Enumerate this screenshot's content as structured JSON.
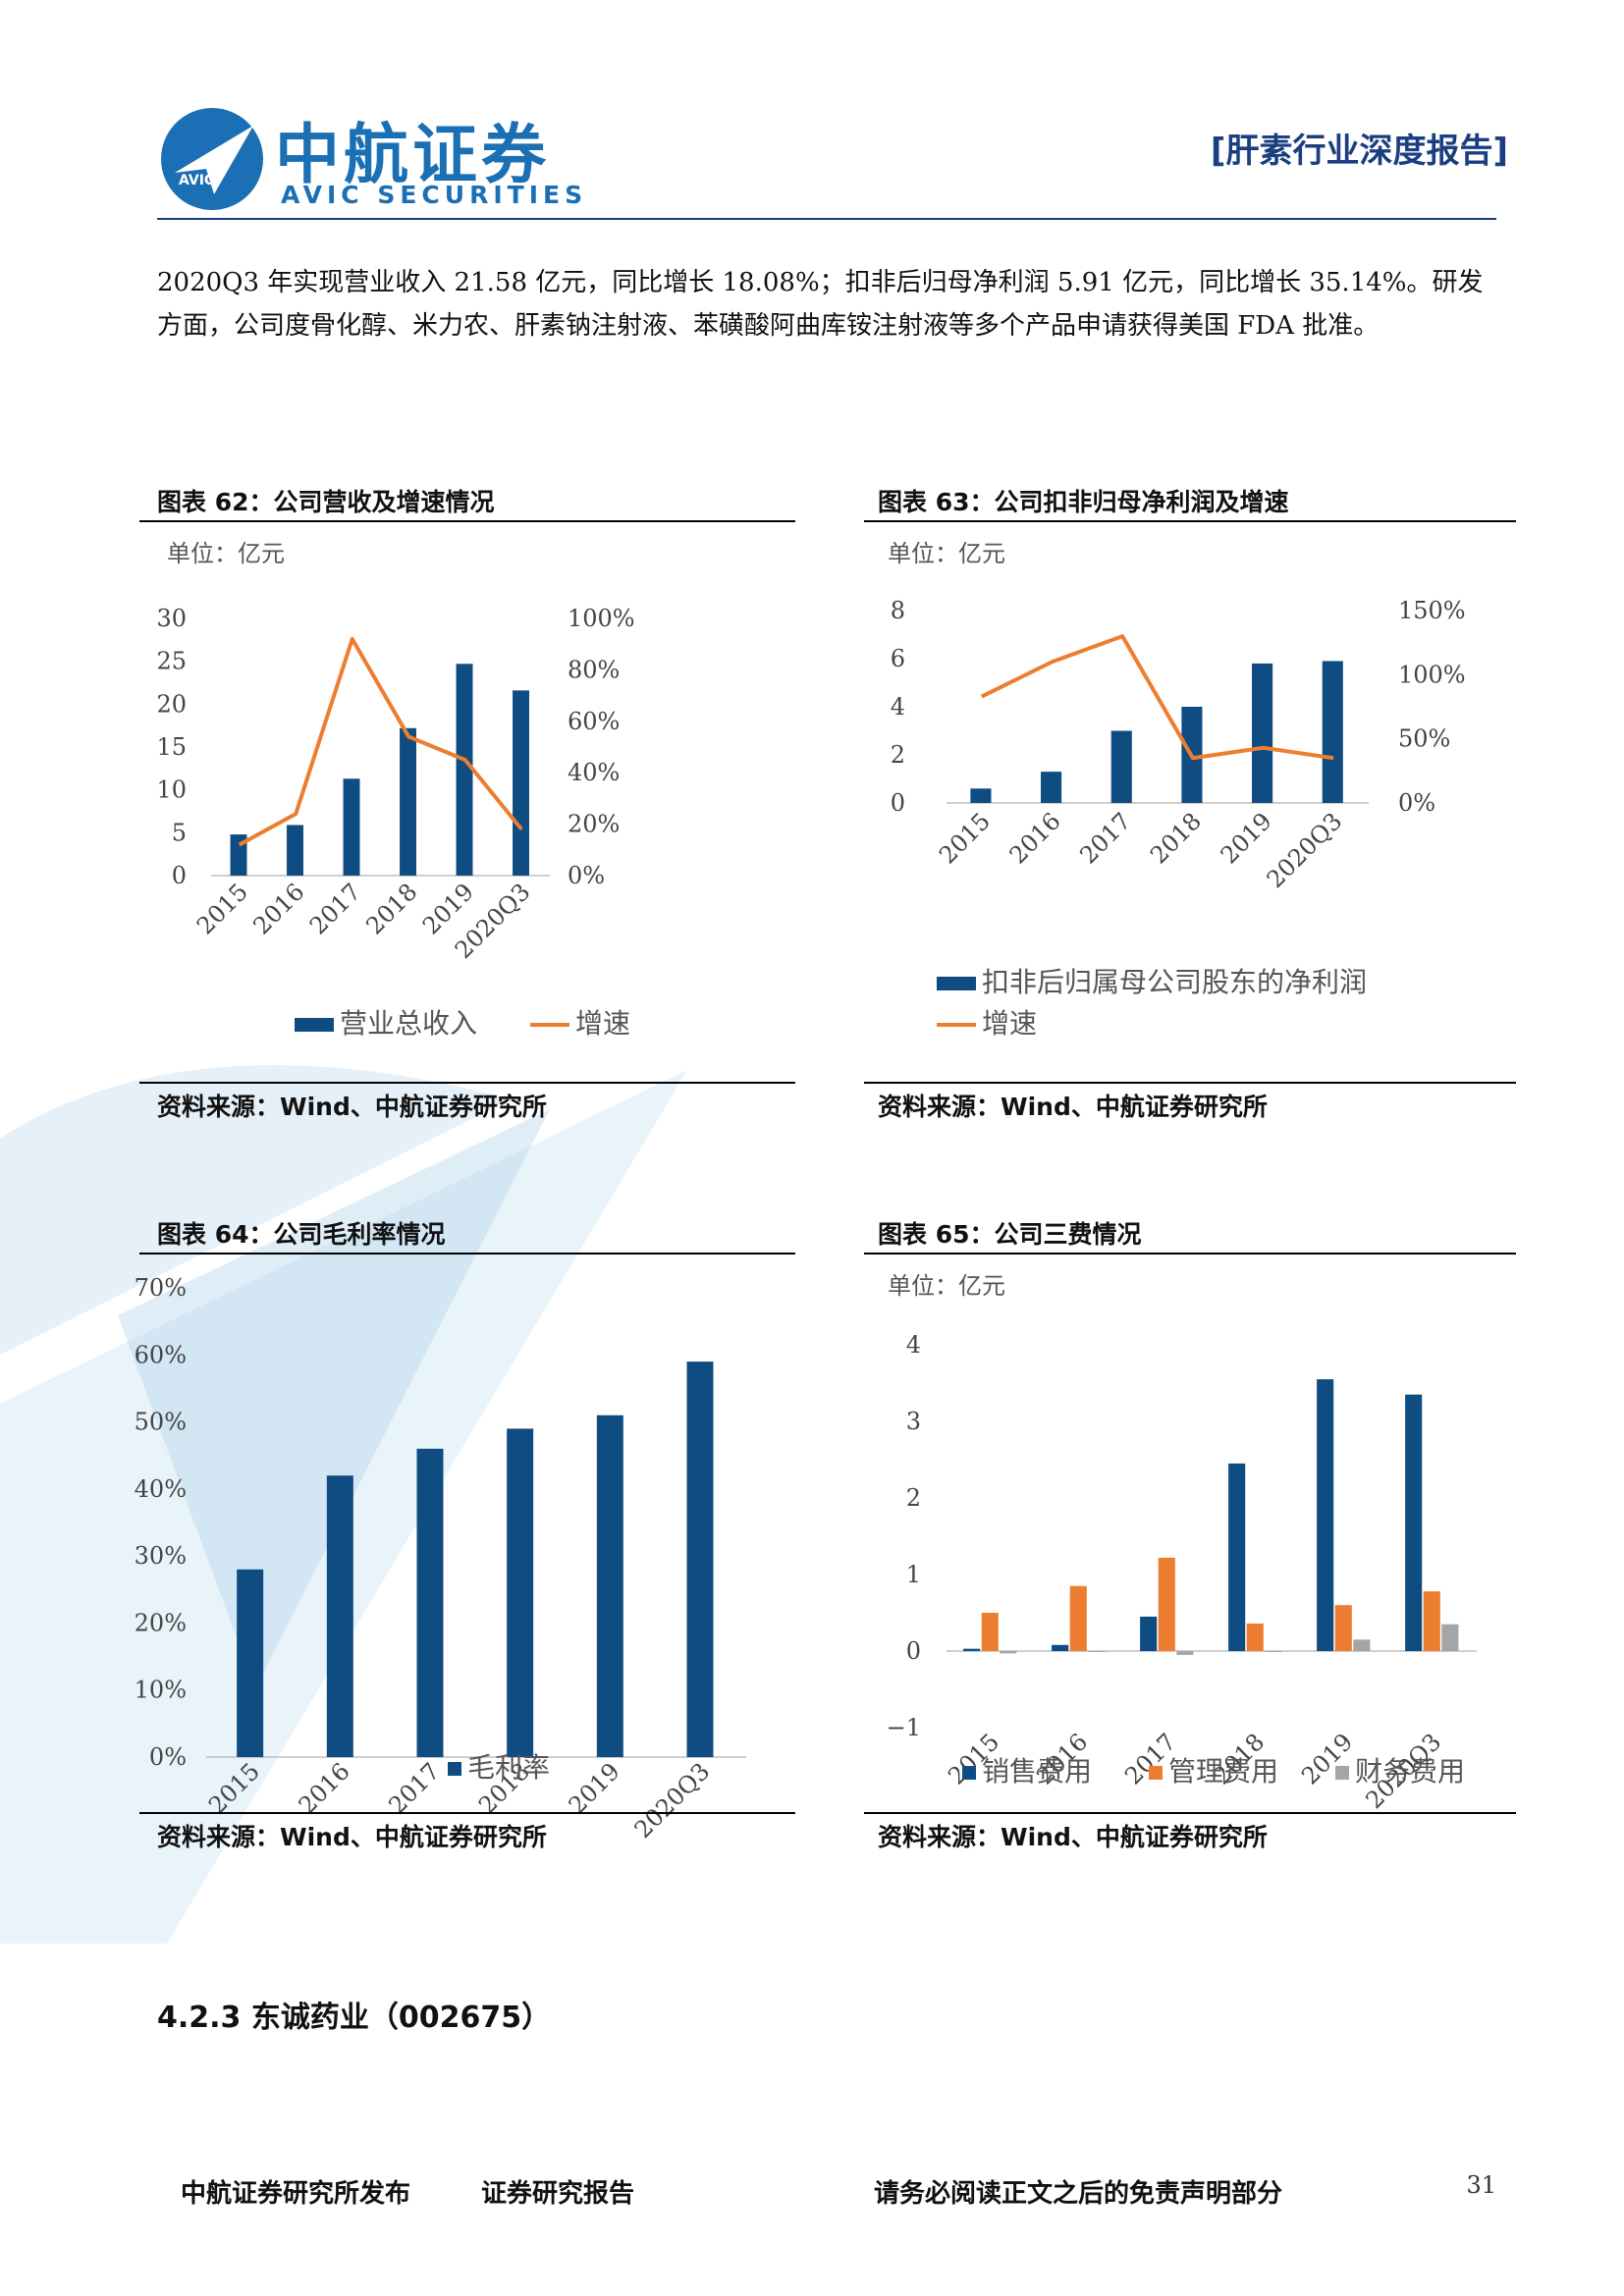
{
  "header": {
    "logo_cn": "中航证券",
    "logo_en": "AVIC SECURITIES",
    "logo_badge": "AVIC",
    "report_type": "[肝素行业深度报告]"
  },
  "body": {
    "paragraph": "2020Q3 年实现营业收入 21.58 亿元，同比增长 18.08%；扣非后归母净利润 5.91 亿元，同比增长 35.14%。研发方面，公司度骨化醇、米力农、肝素钠注射液、苯磺酸阿曲库铵注射液等多个产品申请获得美国 FDA 批准。"
  },
  "figures": {
    "fig62": {
      "title": "图表 62：公司营收及增速情况",
      "unit": "单位：亿元",
      "source": "资料来源：Wind、中航证券研究所"
    },
    "fig63": {
      "title": "图表 63：公司扣非归母净利润及增速",
      "unit": "单位：亿元",
      "source": "资料来源：Wind、中航证券研究所"
    },
    "fig64": {
      "title": "图表 64：公司毛利率情况",
      "source": "资料来源：Wind、中航证券研究所"
    },
    "fig65": {
      "title": "图表 65：公司三费情况",
      "unit": "单位：亿元",
      "source": "资料来源：Wind、中航证券研究所"
    }
  },
  "chart_data": [
    {
      "id": "fig62",
      "type": "bar",
      "categories": [
        "2015",
        "2016",
        "2017",
        "2018",
        "2019",
        "2020Q3"
      ],
      "series": [
        {
          "name": "营业总收入",
          "values": [
            4.8,
            5.9,
            11.3,
            17.2,
            24.7,
            21.6
          ],
          "axis": "left",
          "color": "#0f4c81"
        },
        {
          "name": "增速",
          "type": "line",
          "values": [
            0.12,
            0.24,
            0.92,
            0.54,
            0.45,
            0.18
          ],
          "axis": "right",
          "color": "#ed7d31"
        }
      ],
      "y_left": {
        "min": 0,
        "max": 30,
        "ticks": [
          "0",
          "5",
          "10",
          "15",
          "20",
          "25",
          "30"
        ]
      },
      "y_right": {
        "min": 0,
        "max": 1,
        "ticks": [
          "0%",
          "20%",
          "40%",
          "60%",
          "80%",
          "100%"
        ]
      },
      "legend": "bottom"
    },
    {
      "id": "fig63",
      "type": "bar",
      "categories": [
        "2015",
        "2016",
        "2017",
        "2018",
        "2019",
        "2020Q3"
      ],
      "series": [
        {
          "name": "扣非后归属母公司股东的净利润",
          "values": [
            0.6,
            1.3,
            3.0,
            4.0,
            5.8,
            5.9
          ],
          "axis": "left",
          "color": "#0f4c81"
        },
        {
          "name": "增速",
          "type": "line",
          "values": [
            0.83,
            1.1,
            1.3,
            0.35,
            0.43,
            0.35
          ],
          "axis": "right",
          "color": "#ed7d31"
        }
      ],
      "y_left": {
        "min": 0,
        "max": 8,
        "ticks": [
          "0",
          "2",
          "4",
          "6",
          "8"
        ]
      },
      "y_right": {
        "min": 0,
        "max": 1.5,
        "ticks": [
          "0%",
          "50%",
          "100%",
          "150%"
        ]
      },
      "legend": "bottom"
    },
    {
      "id": "fig64",
      "type": "bar",
      "categories": [
        "2015",
        "2016",
        "2017",
        "2018",
        "2019",
        "2020Q3"
      ],
      "series": [
        {
          "name": "毛利率",
          "values": [
            0.28,
            0.42,
            0.46,
            0.49,
            0.51,
            0.59
          ],
          "color": "#0f4c81"
        }
      ],
      "y_left": {
        "min": 0,
        "max": 0.7,
        "ticks": [
          "0%",
          "10%",
          "20%",
          "30%",
          "40%",
          "50%",
          "60%",
          "70%"
        ]
      },
      "legend": "bottom"
    },
    {
      "id": "fig65",
      "type": "bar",
      "categories": [
        "2015",
        "2016",
        "2017",
        "2018",
        "2019",
        "2020Q3"
      ],
      "series": [
        {
          "name": "销售费用",
          "values": [
            0.03,
            0.08,
            0.45,
            2.45,
            3.55,
            3.35
          ],
          "color": "#0f4c81"
        },
        {
          "name": "管理费用",
          "values": [
            0.5,
            0.85,
            1.22,
            0.36,
            0.6,
            0.78
          ],
          "color": "#ed7d31"
        },
        {
          "name": "财务费用",
          "values": [
            -0.03,
            0.0,
            -0.05,
            0.0,
            0.15,
            0.35
          ],
          "color": "#a5a5a5"
        }
      ],
      "y_left": {
        "min": -1,
        "max": 4,
        "ticks": [
          "−1",
          "0",
          "1",
          "2",
          "3",
          "4"
        ]
      },
      "legend": "bottom"
    }
  ],
  "section": {
    "heading": "4.2.3 东诚药业（002675）"
  },
  "footer": {
    "publisher": "中航证券研究所发布",
    "doc_type": "证券研究报告",
    "disclaimer": "请务必阅读正文之后的免责声明部分",
    "page_number": "31"
  }
}
